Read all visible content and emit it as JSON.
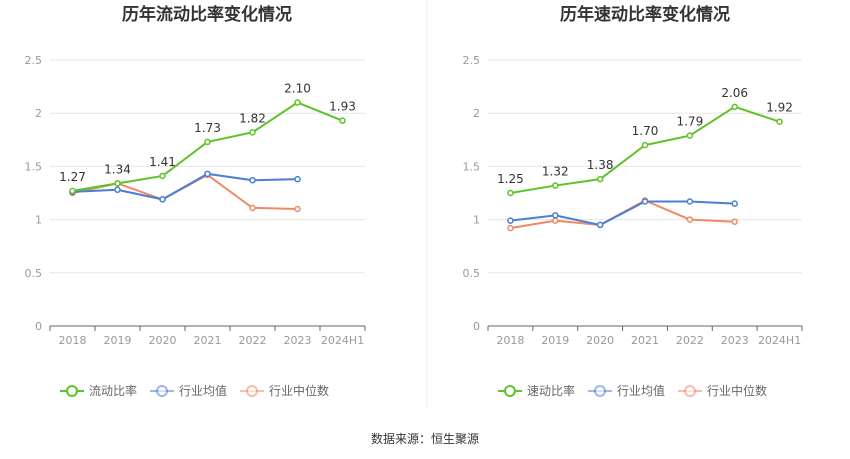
{
  "chart_data": [
    {
      "type": "line",
      "title": "历年流动比率变化情况",
      "categories": [
        "2018",
        "2019",
        "2020",
        "2021",
        "2022",
        "2023",
        "2024H1"
      ],
      "ylim": [
        0,
        2.5
      ],
      "yticks": [
        "0",
        "0.5",
        "1",
        "1.5",
        "2",
        "2.5"
      ],
      "grid": true,
      "legend_position": "bottom",
      "series": [
        {
          "name": "流动比率",
          "color": "#5ec327",
          "labels": true,
          "values": [
            1.27,
            1.34,
            1.41,
            1.73,
            1.82,
            2.1,
            1.93
          ],
          "value_labels": [
            "1.27",
            "1.34",
            "1.41",
            "1.73",
            "1.82",
            "2.10",
            "1.93"
          ]
        },
        {
          "name": "行业均值",
          "color": "#4a7fd4",
          "labels": false,
          "values": [
            1.26,
            1.28,
            1.19,
            1.43,
            1.37,
            1.38,
            null
          ]
        },
        {
          "name": "行业中位数",
          "color": "#ef8a67",
          "labels": false,
          "values": [
            1.25,
            1.34,
            1.19,
            1.42,
            1.11,
            1.1,
            null
          ]
        }
      ]
    },
    {
      "type": "line",
      "title": "历年速动比率变化情况",
      "categories": [
        "2018",
        "2019",
        "2020",
        "2021",
        "2022",
        "2023",
        "2024H1"
      ],
      "ylim": [
        0,
        2.5
      ],
      "yticks": [
        "0",
        "0.5",
        "1",
        "1.5",
        "2",
        "2.5"
      ],
      "grid": true,
      "legend_position": "bottom",
      "series": [
        {
          "name": "速动比率",
          "color": "#5ec327",
          "labels": true,
          "values": [
            1.25,
            1.32,
            1.38,
            1.7,
            1.79,
            2.06,
            1.92
          ],
          "value_labels": [
            "1.25",
            "1.32",
            "1.38",
            "1.70",
            "1.79",
            "2.06",
            "1.92"
          ]
        },
        {
          "name": "行业均值",
          "color": "#4a7fd4",
          "labels": false,
          "values": [
            0.99,
            1.04,
            0.95,
            1.17,
            1.17,
            1.15,
            null
          ]
        },
        {
          "name": "行业中位数",
          "color": "#ef8a67",
          "labels": false,
          "values": [
            0.92,
            0.99,
            0.95,
            1.18,
            1.0,
            0.98,
            null
          ]
        }
      ]
    }
  ],
  "footer": {
    "source": "数据来源：恒生聚源"
  }
}
